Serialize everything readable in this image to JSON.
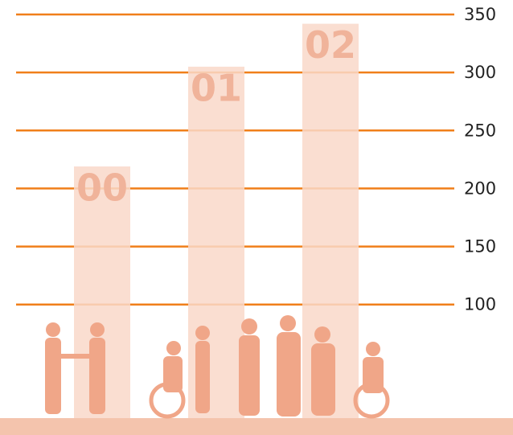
{
  "chart_data": {
    "type": "bar",
    "categories": [
      "00",
      "01",
      "02"
    ],
    "values": [
      219,
      305,
      342
    ],
    "color": "#f9d8c9",
    "ylim": [
      0,
      350
    ],
    "yticks": [
      100,
      150,
      200,
      250,
      300,
      350
    ],
    "grid": true
  }
}
